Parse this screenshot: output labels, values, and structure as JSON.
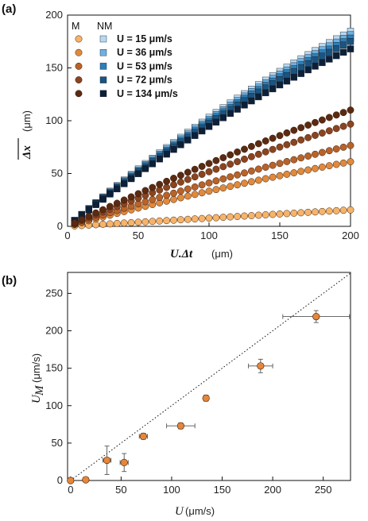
{
  "figure": {
    "panel_a_label": "(a)",
    "panel_b_label": "(b)"
  },
  "chart_data": [
    {
      "type": "scatter",
      "panel": "(a)",
      "xlabel_main": "U.Δt",
      "xlabel_unit": "(μm)",
      "ylabel_main": "Δx",
      "ylabel_unit": "(μm)",
      "xlim": [
        0,
        200
      ],
      "ylim": [
        0,
        200
      ],
      "xticks": [
        "0",
        "50",
        "100",
        "150",
        "200"
      ],
      "yticks": [
        "0",
        "50",
        "100",
        "150",
        "200"
      ],
      "legend": {
        "position": "top-left",
        "header_m": "M",
        "header_nm": "NM",
        "labels": [
          "U = 15 μm/s",
          "U = 36 μm/s",
          "U = 53 μm/s",
          "U = 72 μm/s",
          "U = 134 μm/s"
        ]
      },
      "series": [
        {
          "group": "M",
          "velocity": 15,
          "color": "#f6b46a",
          "slope": 0.078,
          "curvature": 0.0
        },
        {
          "group": "M",
          "velocity": 36,
          "color": "#e08a3c",
          "slope": 0.36,
          "curvature": 0.15
        },
        {
          "group": "M",
          "velocity": 53,
          "color": "#b8632a",
          "slope": 0.44,
          "curvature": 0.13
        },
        {
          "group": "M",
          "velocity": 72,
          "color": "#8a4520",
          "slope": 0.55,
          "curvature": 0.12
        },
        {
          "group": "M",
          "velocity": 134,
          "color": "#5a2a12",
          "slope": 0.64,
          "curvature": 0.14
        },
        {
          "group": "NM",
          "velocity": 15,
          "color": "#b9d9f0",
          "slope": 1.14,
          "curvature": 0.19
        },
        {
          "group": "NM",
          "velocity": 36,
          "color": "#6fb0de",
          "slope": 1.12,
          "curvature": 0.19
        },
        {
          "group": "NM",
          "velocity": 53,
          "color": "#2e7fb8",
          "slope": 1.1,
          "curvature": 0.19
        },
        {
          "group": "NM",
          "velocity": 72,
          "color": "#1b5480",
          "slope": 1.08,
          "curvature": 0.19
        },
        {
          "group": "NM",
          "velocity": 134,
          "color": "#0d2038",
          "slope": 1.05,
          "curvature": 0.2
        }
      ],
      "x_samples": {
        "start": 5,
        "step": 5,
        "end": 200
      }
    },
    {
      "type": "scatter",
      "panel": "(b)",
      "xlabel_main": "U",
      "xlabel_unit": "(μm/s)",
      "ylabel_main": "U",
      "ylabel_sub": "M",
      "ylabel_unit": "(μm/s)",
      "xlim": [
        -3,
        277
      ],
      "ylim": [
        0,
        278
      ],
      "xticks": [
        "0",
        "50",
        "100",
        "150",
        "200",
        "250"
      ],
      "yticks": [
        "0",
        "50",
        "100",
        "150",
        "200",
        "250"
      ],
      "marker_color": "#e5863a",
      "reference_line": {
        "style": "dotted",
        "slope": 1,
        "intercept": 0
      },
      "points": [
        {
          "x": 0,
          "y": 0,
          "xerr": 0,
          "yerr": 0
        },
        {
          "x": 15,
          "y": 1,
          "xerr": 0,
          "yerr": 0
        },
        {
          "x": 36,
          "y": 27,
          "xerr": 4,
          "yerr": 19
        },
        {
          "x": 53,
          "y": 24,
          "xerr": 4,
          "yerr": 12
        },
        {
          "x": 72,
          "y": 59,
          "xerr": 4,
          "yerr": 4
        },
        {
          "x": 109,
          "y": 73,
          "xerr": 14,
          "yerr": 4
        },
        {
          "x": 134,
          "y": 110,
          "xerr": 0,
          "yerr": 4
        },
        {
          "x": 188,
          "y": 153,
          "xerr": 12,
          "yerr": 9
        },
        {
          "x": 243,
          "y": 219,
          "xerr": 33,
          "yerr": 8
        }
      ]
    }
  ]
}
